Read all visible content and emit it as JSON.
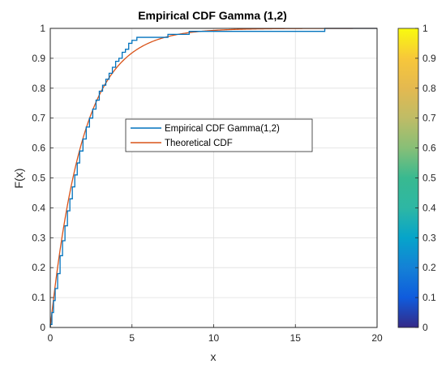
{
  "chart_data": {
    "type": "line",
    "title": "Empirical CDF Gamma (1,2)",
    "xlabel": "x",
    "ylabel": "F(x)",
    "xlim": [
      0,
      20
    ],
    "ylim": [
      0,
      1
    ],
    "xticks": [
      "0",
      "5",
      "10",
      "15",
      "20"
    ],
    "yticks": [
      "0",
      "0.1",
      "0.2",
      "0.3",
      "0.4",
      "0.5",
      "0.6",
      "0.7",
      "0.8",
      "0.9",
      "1"
    ],
    "grid": true,
    "legend_position": "center",
    "series": [
      {
        "name": "Empirical CDF Gamma(1,2)",
        "color": "#0072bd",
        "style": "step",
        "x": [
          0,
          0.1,
          0.2,
          0.3,
          0.45,
          0.6,
          0.75,
          0.9,
          1.05,
          1.2,
          1.35,
          1.5,
          1.65,
          1.8,
          2.0,
          2.2,
          2.4,
          2.6,
          2.8,
          3.0,
          3.2,
          3.4,
          3.6,
          3.8,
          4.0,
          4.2,
          4.4,
          4.6,
          4.8,
          5.0,
          5.3,
          5.6,
          6.0,
          6.5,
          7.2,
          7.8,
          8.5,
          9.5,
          11.0,
          12.0,
          16.8
        ],
        "y": [
          0.01,
          0.05,
          0.09,
          0.13,
          0.18,
          0.24,
          0.29,
          0.34,
          0.39,
          0.43,
          0.47,
          0.51,
          0.55,
          0.59,
          0.63,
          0.67,
          0.7,
          0.73,
          0.76,
          0.79,
          0.81,
          0.83,
          0.85,
          0.87,
          0.89,
          0.9,
          0.92,
          0.93,
          0.95,
          0.96,
          0.97,
          0.97,
          0.97,
          0.97,
          0.98,
          0.98,
          0.99,
          0.99,
          0.99,
          0.99,
          1.0
        ]
      },
      {
        "name": "Theoretical CDF",
        "color": "#d95319",
        "style": "smooth",
        "distribution": "gamma(shape=1, scale=2)"
      }
    ],
    "colorbar": {
      "ticks": [
        "0",
        "0.1",
        "0.2",
        "0.3",
        "0.4",
        "0.5",
        "0.6",
        "0.7",
        "0.8",
        "0.9",
        "1"
      ],
      "colormap": "parula"
    }
  }
}
